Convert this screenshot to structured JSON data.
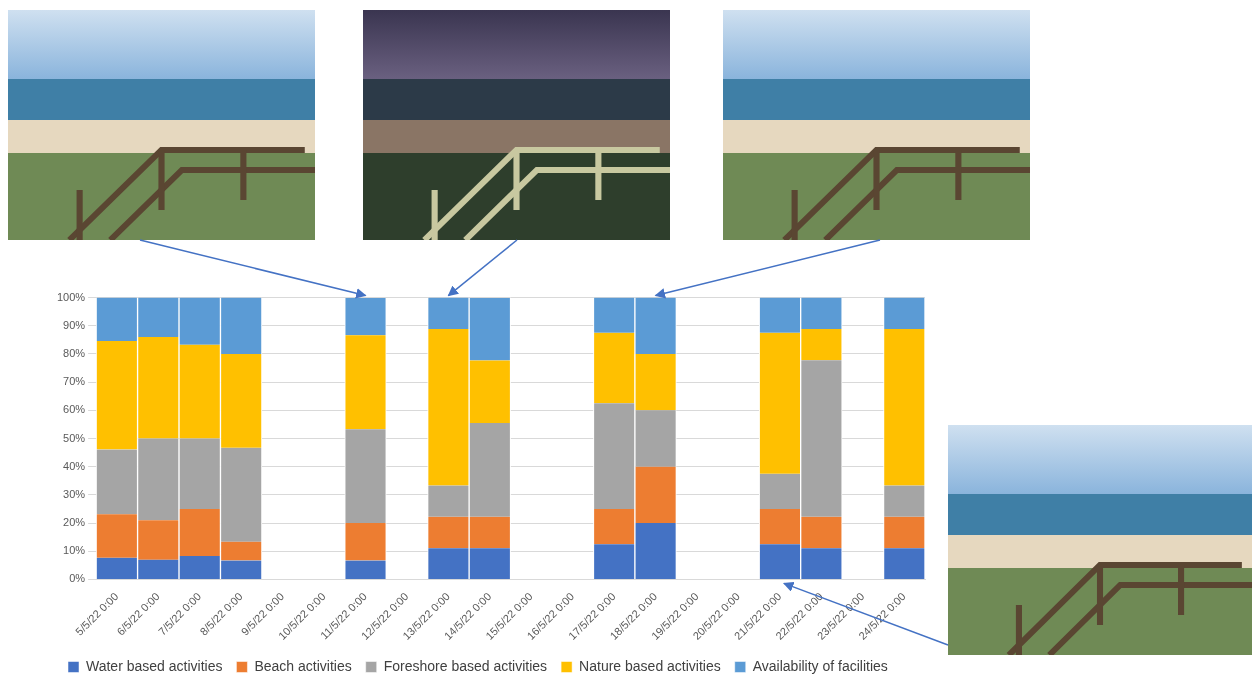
{
  "chart_data": {
    "type": "bar",
    "stacked": true,
    "grid": true,
    "legend": "bottom",
    "categories": [
      "5/5/22 0:00",
      "6/5/22 0:00",
      "7/5/22 0:00",
      "8/5/22 0:00",
      "9/5/22 0:00",
      "10/5/22 0:00",
      "11/5/22 0:00",
      "12/5/22 0:00",
      "13/5/22 0:00",
      "14/5/22 0:00",
      "15/5/22 0:00",
      "16/5/22 0:00",
      "17/5/22 0:00",
      "18/5/22 0:00",
      "19/5/22 0:00",
      "20/5/22 0:00",
      "21/5/22 0:00",
      "22/5/22 0:00",
      "23/5/22 0:00",
      "24/5/22 0:00"
    ],
    "series": [
      {
        "name": "Water based activities",
        "color": "#4472c4",
        "values": [
          7.7,
          7,
          8.3,
          6.7,
          null,
          null,
          6.7,
          null,
          11.1,
          11.1,
          null,
          null,
          12.5,
          20,
          null,
          null,
          12.5,
          11.1,
          null,
          11.1
        ]
      },
      {
        "name": "Beach activities",
        "color": "#ed7d31",
        "values": [
          15.4,
          14,
          16.7,
          6.7,
          null,
          null,
          13.3,
          null,
          11.1,
          11.1,
          null,
          null,
          12.5,
          20,
          null,
          null,
          12.5,
          11.1,
          null,
          11.1
        ]
      },
      {
        "name": "Foreshore based activities",
        "color": "#a5a5a5",
        "values": [
          23,
          29,
          25,
          33.3,
          null,
          null,
          33.3,
          null,
          11.1,
          33.3,
          null,
          null,
          37.5,
          20,
          null,
          null,
          12.5,
          55.6,
          null,
          11.1
        ]
      },
      {
        "name": "Nature based activities",
        "color": "#ffc000",
        "values": [
          38.5,
          36,
          33.3,
          33.3,
          null,
          null,
          33.3,
          null,
          55.6,
          22.2,
          null,
          null,
          25,
          20,
          null,
          null,
          50,
          11.1,
          null,
          55.6
        ]
      },
      {
        "name": "Availability of facilities",
        "color": "#5b9bd5",
        "values": [
          15.4,
          14,
          16.7,
          20,
          null,
          null,
          13.3,
          null,
          11.1,
          22.2,
          null,
          null,
          12.5,
          20,
          null,
          null,
          12.5,
          11.1,
          null,
          11.1
        ]
      }
    ],
    "ylim": [
      0,
      100
    ],
    "yticks": [
      {
        "value": 0,
        "label": "0%"
      },
      {
        "value": 10,
        "label": "10%"
      },
      {
        "value": 20,
        "label": "20%"
      },
      {
        "value": 30,
        "label": "30%"
      },
      {
        "value": 40,
        "label": "40%"
      },
      {
        "value": 50,
        "label": "50%"
      },
      {
        "value": 60,
        "label": "60%"
      },
      {
        "value": 70,
        "label": "70%"
      },
      {
        "value": 80,
        "label": "80%"
      },
      {
        "value": 90,
        "label": "90%"
      },
      {
        "value": 100,
        "label": "100%"
      }
    ]
  }
}
